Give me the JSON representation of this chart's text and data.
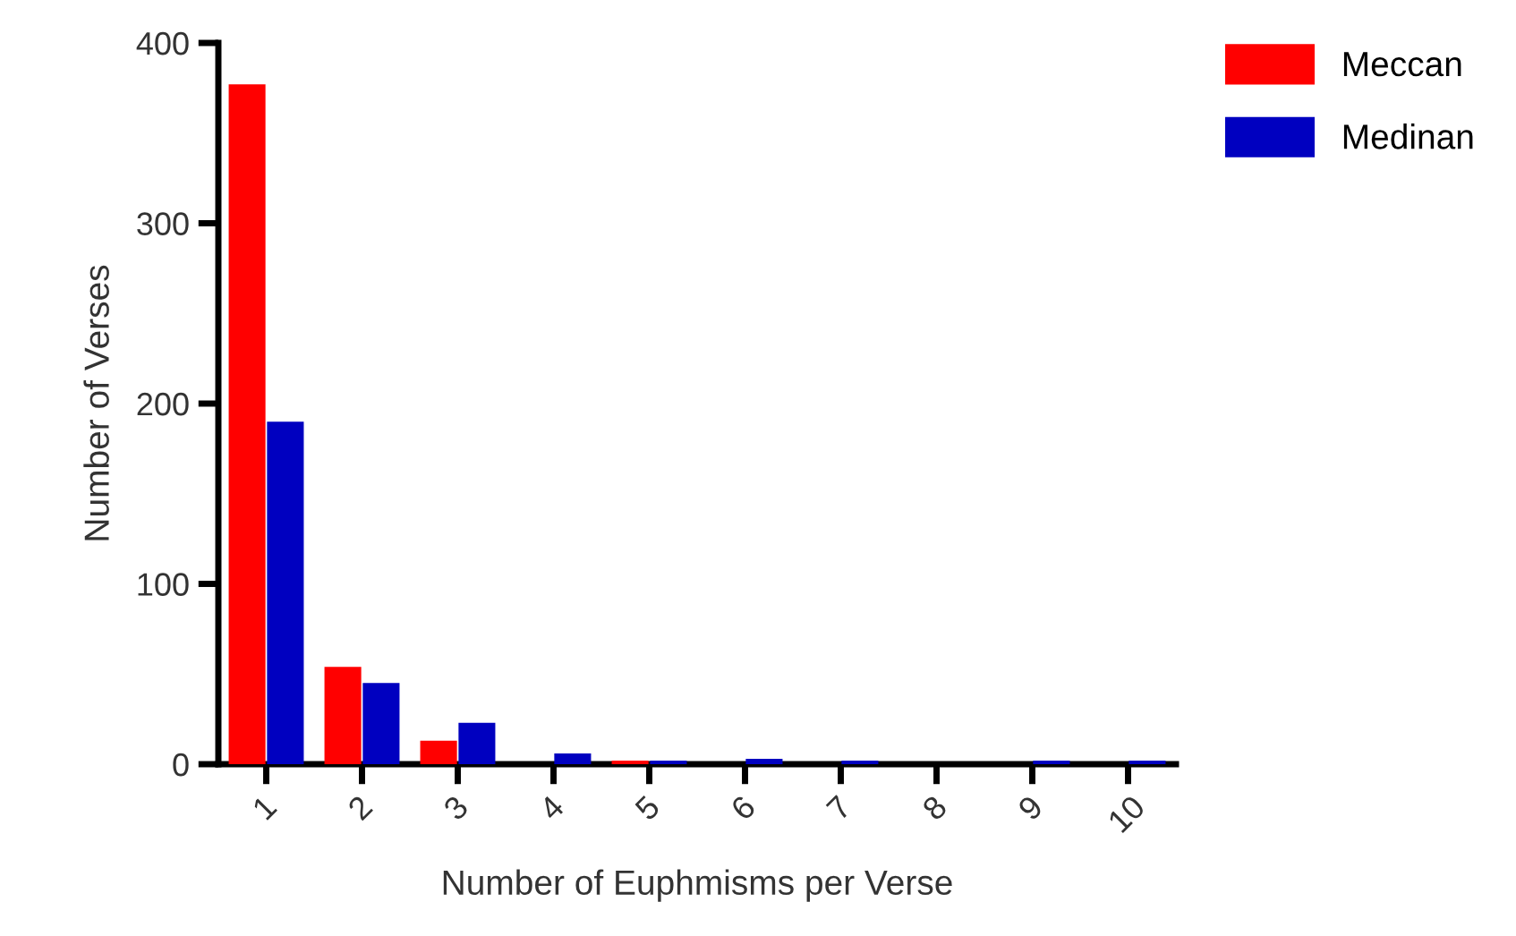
{
  "chart_data": {
    "type": "bar",
    "xlabel": "Number of Euphmisms per Verse",
    "ylabel": "Number of Verses",
    "categories": [
      "1",
      "2",
      "3",
      "4",
      "5",
      "6",
      "7",
      "8",
      "9",
      "10"
    ],
    "series": [
      {
        "name": "Meccan",
        "color": "#ff0000",
        "values": [
          377,
          54,
          13,
          0,
          2,
          0,
          0,
          0,
          0,
          0
        ]
      },
      {
        "name": "Medinan",
        "color": "#0000c0",
        "values": [
          190,
          45,
          23,
          6,
          2,
          3,
          2,
          0,
          2,
          2
        ]
      }
    ],
    "ylim": [
      0,
      400
    ],
    "yticks": [
      0,
      100,
      200,
      300,
      400
    ],
    "grid": false,
    "legend": "top right"
  }
}
